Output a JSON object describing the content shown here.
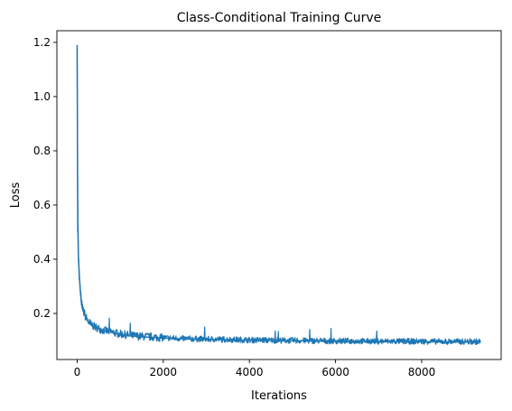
{
  "chart_data": {
    "type": "line",
    "title": "Class-Conditional Training Curve",
    "xlabel": "Iterations",
    "ylabel": "Loss",
    "xlim": [
      -470,
      9845
    ],
    "ylim": [
      0.03,
      1.243
    ],
    "xticks": [
      0,
      2000,
      4000,
      6000,
      8000
    ],
    "yticks": [
      0.2,
      0.4,
      0.6,
      0.8,
      1.0,
      1.2
    ],
    "xtick_labels": [
      "0",
      "2000",
      "4000",
      "6000",
      "8000"
    ],
    "ytick_labels": [
      "0.2",
      "0.4",
      "0.6",
      "0.8",
      "1.0",
      "1.2"
    ],
    "grid": false,
    "legend": "none",
    "series": [
      {
        "color": "#1f77b4",
        "x": [
          0,
          5,
          10,
          15,
          20,
          25,
          30,
          40,
          50,
          60,
          70,
          80,
          100,
          120,
          150,
          200,
          250,
          300,
          400,
          500,
          600,
          700,
          800,
          900,
          1000,
          1200,
          1400,
          1600,
          1800,
          2000,
          2500,
          3000,
          3500,
          3700,
          4000,
          4500,
          5000,
          5500,
          6000,
          6500,
          7000,
          7500,
          8000,
          8500,
          9000,
          9370
        ],
        "values": [
          1.19,
          0.95,
          0.72,
          0.5,
          0.52,
          0.45,
          0.4,
          0.38,
          0.33,
          0.32,
          0.29,
          0.27,
          0.24,
          0.22,
          0.205,
          0.185,
          0.17,
          0.16,
          0.15,
          0.143,
          0.137,
          0.133,
          0.13,
          0.126,
          0.123,
          0.118,
          0.115,
          0.113,
          0.111,
          0.109,
          0.106,
          0.104,
          0.103,
          0.102,
          0.101,
          0.1,
          0.099,
          0.098,
          0.097,
          0.097,
          0.096,
          0.096,
          0.096,
          0.095,
          0.095,
          0.095
        ]
      }
    ]
  }
}
